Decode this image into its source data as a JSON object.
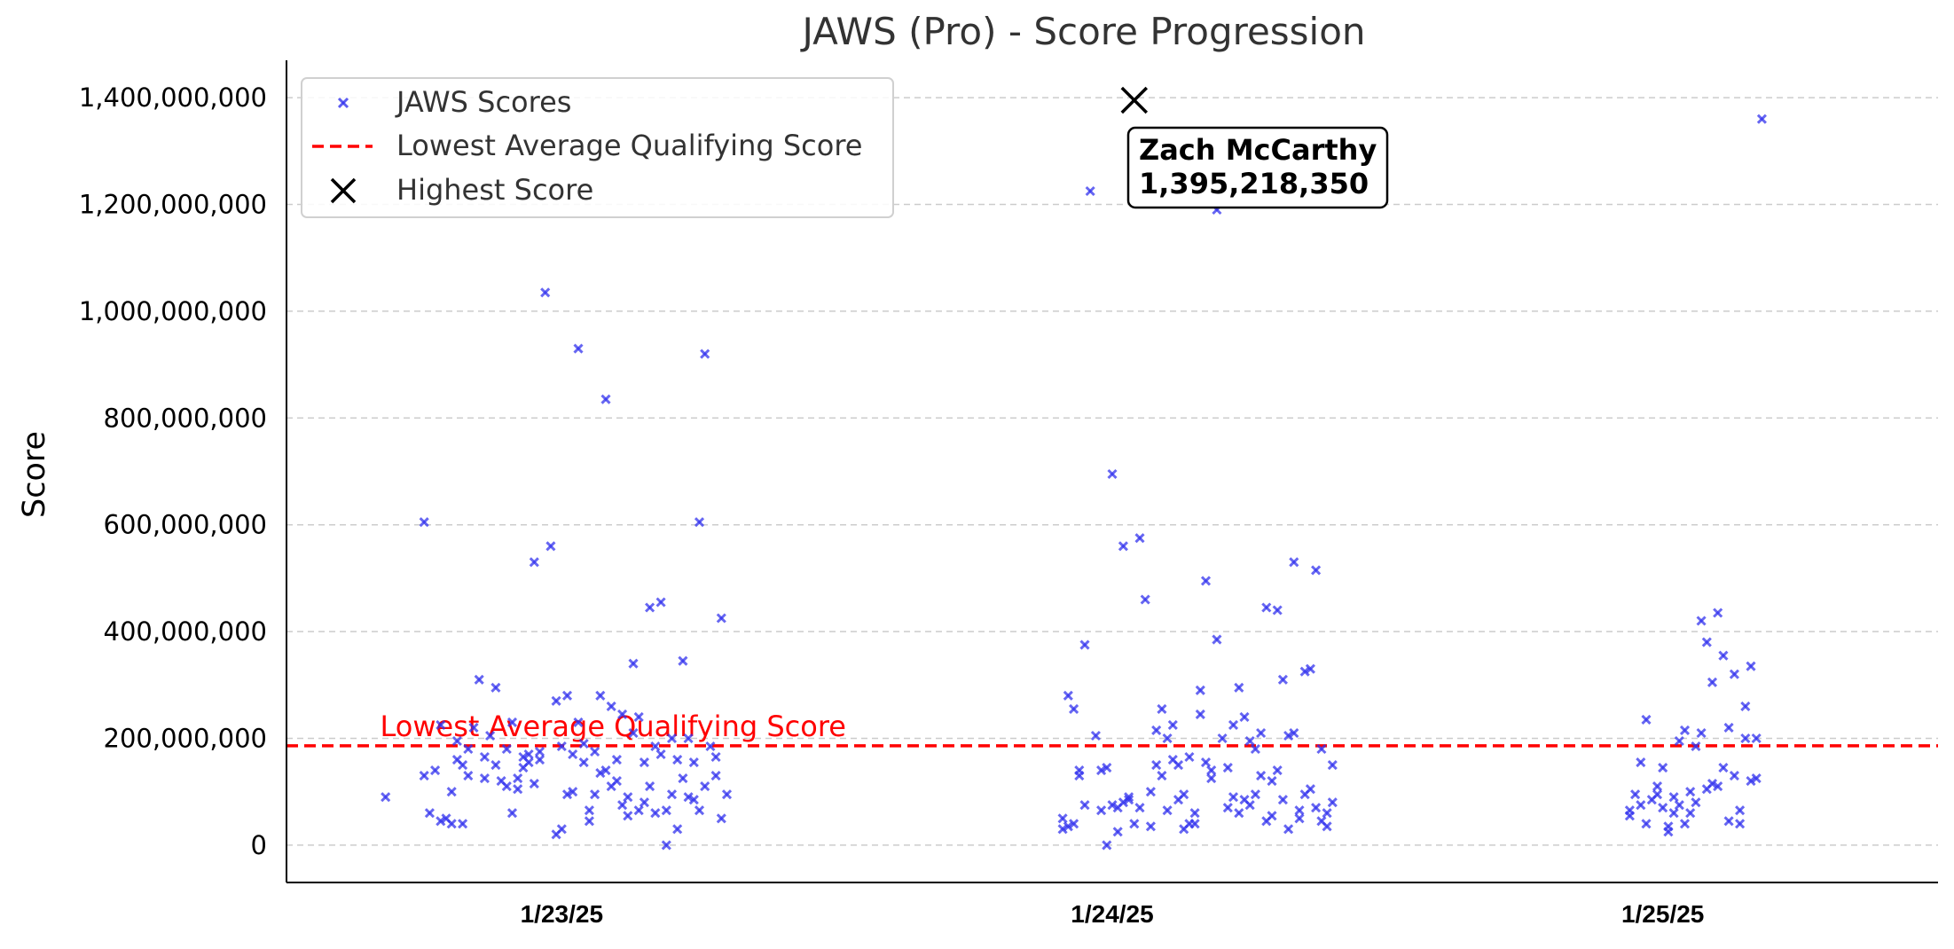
{
  "chart_data": {
    "type": "scatter",
    "title": "JAWS (Pro) - Score Progression",
    "xlabel": "",
    "ylabel": "Score",
    "ylim": [
      -70000000,
      1470000000
    ],
    "yticks": [
      0,
      200000000,
      400000000,
      600000000,
      800000000,
      1000000000,
      1200000000,
      1400000000
    ],
    "ytick_labels": [
      "0",
      "200,000,000",
      "400,000,000",
      "600,000,000",
      "800,000,000",
      "1,000,000,000",
      "1,200,000,000",
      "1,400,000,000"
    ],
    "xlim": [
      0,
      3
    ],
    "xticks": [
      0.5,
      1.5,
      2.5
    ],
    "xtick_labels": [
      "1/23/25",
      "1/24/25",
      "1/25/25"
    ],
    "grid": "horizontal dashed",
    "legend": {
      "position": "top-left",
      "entries": [
        "JAWS Scores",
        "Lowest Average Qualifying Score",
        "Highest Score"
      ]
    },
    "colors": {
      "scores": "#3333ee",
      "threshold": "#ff0000",
      "highlight": "#000000",
      "grid": "#cccccc"
    },
    "threshold": {
      "name": "Lowest Average Qualifying Score",
      "value": 186000000,
      "label": "Lowest Average Qualifying Score"
    },
    "highest": {
      "name": "Highest Score",
      "x": 1.54,
      "value": 1395218350,
      "player": "Zach McCarthy",
      "label": "1,395,218,350"
    },
    "series": [
      {
        "name": "JAWS Scores",
        "points": [
          [
            0.18,
            90000000
          ],
          [
            0.25,
            605000000
          ],
          [
            0.25,
            130000000
          ],
          [
            0.26,
            60000000
          ],
          [
            0.27,
            140000000
          ],
          [
            0.28,
            45000000
          ],
          [
            0.28,
            225000000
          ],
          [
            0.29,
            50000000
          ],
          [
            0.3,
            40000000
          ],
          [
            0.3,
            100000000
          ],
          [
            0.31,
            160000000
          ],
          [
            0.31,
            195000000
          ],
          [
            0.32,
            150000000
          ],
          [
            0.32,
            40000000
          ],
          [
            0.33,
            130000000
          ],
          [
            0.33,
            180000000
          ],
          [
            0.34,
            220000000
          ],
          [
            0.35,
            310000000
          ],
          [
            0.36,
            165000000
          ],
          [
            0.36,
            125000000
          ],
          [
            0.37,
            205000000
          ],
          [
            0.38,
            295000000
          ],
          [
            0.38,
            150000000
          ],
          [
            0.39,
            120000000
          ],
          [
            0.4,
            110000000
          ],
          [
            0.4,
            180000000
          ],
          [
            0.41,
            60000000
          ],
          [
            0.41,
            230000000
          ],
          [
            0.42,
            105000000
          ],
          [
            0.42,
            125000000
          ],
          [
            0.43,
            145000000
          ],
          [
            0.43,
            165000000
          ],
          [
            0.44,
            155000000
          ],
          [
            0.44,
            170000000
          ],
          [
            0.45,
            530000000
          ],
          [
            0.45,
            115000000
          ],
          [
            0.46,
            160000000
          ],
          [
            0.46,
            175000000
          ],
          [
            0.47,
            1035000000
          ],
          [
            0.48,
            560000000
          ],
          [
            0.49,
            20000000
          ],
          [
            0.49,
            270000000
          ],
          [
            0.5,
            30000000
          ],
          [
            0.5,
            185000000
          ],
          [
            0.51,
            280000000
          ],
          [
            0.51,
            95000000
          ],
          [
            0.52,
            100000000
          ],
          [
            0.52,
            170000000
          ],
          [
            0.53,
            230000000
          ],
          [
            0.53,
            930000000
          ],
          [
            0.54,
            155000000
          ],
          [
            0.54,
            190000000
          ],
          [
            0.55,
            65000000
          ],
          [
            0.55,
            45000000
          ],
          [
            0.56,
            95000000
          ],
          [
            0.56,
            175000000
          ],
          [
            0.57,
            280000000
          ],
          [
            0.57,
            135000000
          ],
          [
            0.58,
            835000000
          ],
          [
            0.58,
            140000000
          ],
          [
            0.59,
            110000000
          ],
          [
            0.59,
            260000000
          ],
          [
            0.6,
            160000000
          ],
          [
            0.6,
            120000000
          ],
          [
            0.61,
            245000000
          ],
          [
            0.61,
            75000000
          ],
          [
            0.62,
            90000000
          ],
          [
            0.62,
            55000000
          ],
          [
            0.63,
            340000000
          ],
          [
            0.63,
            210000000
          ],
          [
            0.64,
            240000000
          ],
          [
            0.64,
            65000000
          ],
          [
            0.65,
            80000000
          ],
          [
            0.65,
            155000000
          ],
          [
            0.66,
            110000000
          ],
          [
            0.66,
            445000000
          ],
          [
            0.67,
            60000000
          ],
          [
            0.67,
            185000000
          ],
          [
            0.68,
            455000000
          ],
          [
            0.68,
            170000000
          ],
          [
            0.69,
            65000000
          ],
          [
            0.69,
            0
          ],
          [
            0.7,
            200000000
          ],
          [
            0.7,
            95000000
          ],
          [
            0.71,
            160000000
          ],
          [
            0.71,
            30000000
          ],
          [
            0.72,
            125000000
          ],
          [
            0.72,
            345000000
          ],
          [
            0.73,
            90000000
          ],
          [
            0.73,
            200000000
          ],
          [
            0.74,
            85000000
          ],
          [
            0.74,
            155000000
          ],
          [
            0.75,
            605000000
          ],
          [
            0.75,
            65000000
          ],
          [
            0.76,
            920000000
          ],
          [
            0.76,
            110000000
          ],
          [
            0.77,
            185000000
          ],
          [
            0.78,
            130000000
          ],
          [
            0.78,
            165000000
          ],
          [
            0.79,
            425000000
          ],
          [
            0.79,
            50000000
          ],
          [
            0.8,
            95000000
          ],
          [
            1.41,
            50000000
          ],
          [
            1.41,
            30000000
          ],
          [
            1.42,
            35000000
          ],
          [
            1.42,
            280000000
          ],
          [
            1.43,
            255000000
          ],
          [
            1.43,
            40000000
          ],
          [
            1.44,
            130000000
          ],
          [
            1.44,
            140000000
          ],
          [
            1.45,
            375000000
          ],
          [
            1.45,
            75000000
          ],
          [
            1.46,
            1225000000
          ],
          [
            1.47,
            205000000
          ],
          [
            1.48,
            65000000
          ],
          [
            1.48,
            140000000
          ],
          [
            1.49,
            0
          ],
          [
            1.49,
            145000000
          ],
          [
            1.5,
            75000000
          ],
          [
            1.5,
            695000000
          ],
          [
            1.51,
            25000000
          ],
          [
            1.51,
            70000000
          ],
          [
            1.52,
            80000000
          ],
          [
            1.52,
            560000000
          ],
          [
            1.53,
            90000000
          ],
          [
            1.53,
            85000000
          ],
          [
            1.54,
            40000000
          ],
          [
            1.55,
            575000000
          ],
          [
            1.55,
            70000000
          ],
          [
            1.56,
            460000000
          ],
          [
            1.57,
            35000000
          ],
          [
            1.57,
            100000000
          ],
          [
            1.58,
            215000000
          ],
          [
            1.58,
            150000000
          ],
          [
            1.59,
            255000000
          ],
          [
            1.59,
            130000000
          ],
          [
            1.6,
            65000000
          ],
          [
            1.6,
            200000000
          ],
          [
            1.61,
            225000000
          ],
          [
            1.61,
            160000000
          ],
          [
            1.62,
            85000000
          ],
          [
            1.62,
            150000000
          ],
          [
            1.63,
            95000000
          ],
          [
            1.63,
            30000000
          ],
          [
            1.64,
            40000000
          ],
          [
            1.64,
            165000000
          ],
          [
            1.65,
            60000000
          ],
          [
            1.65,
            40000000
          ],
          [
            1.66,
            245000000
          ],
          [
            1.66,
            290000000
          ],
          [
            1.67,
            155000000
          ],
          [
            1.67,
            495000000
          ],
          [
            1.68,
            140000000
          ],
          [
            1.68,
            125000000
          ],
          [
            1.69,
            385000000
          ],
          [
            1.69,
            1190000000
          ],
          [
            1.7,
            200000000
          ],
          [
            1.71,
            70000000
          ],
          [
            1.71,
            145000000
          ],
          [
            1.72,
            90000000
          ],
          [
            1.72,
            225000000
          ],
          [
            1.73,
            295000000
          ],
          [
            1.73,
            60000000
          ],
          [
            1.74,
            85000000
          ],
          [
            1.74,
            240000000
          ],
          [
            1.75,
            75000000
          ],
          [
            1.75,
            195000000
          ],
          [
            1.76,
            180000000
          ],
          [
            1.76,
            95000000
          ],
          [
            1.77,
            130000000
          ],
          [
            1.77,
            210000000
          ],
          [
            1.78,
            45000000
          ],
          [
            1.78,
            445000000
          ],
          [
            1.79,
            55000000
          ],
          [
            1.79,
            120000000
          ],
          [
            1.8,
            440000000
          ],
          [
            1.8,
            140000000
          ],
          [
            1.81,
            85000000
          ],
          [
            1.81,
            310000000
          ],
          [
            1.82,
            205000000
          ],
          [
            1.82,
            30000000
          ],
          [
            1.83,
            210000000
          ],
          [
            1.83,
            530000000
          ],
          [
            1.84,
            65000000
          ],
          [
            1.84,
            50000000
          ],
          [
            1.85,
            95000000
          ],
          [
            1.85,
            325000000
          ],
          [
            1.86,
            105000000
          ],
          [
            1.86,
            330000000
          ],
          [
            1.87,
            70000000
          ],
          [
            1.87,
            515000000
          ],
          [
            1.88,
            180000000
          ],
          [
            1.88,
            45000000
          ],
          [
            1.89,
            35000000
          ],
          [
            1.89,
            60000000
          ],
          [
            1.9,
            80000000
          ],
          [
            1.9,
            150000000
          ],
          [
            2.44,
            55000000
          ],
          [
            2.44,
            65000000
          ],
          [
            2.45,
            95000000
          ],
          [
            2.46,
            75000000
          ],
          [
            2.46,
            155000000
          ],
          [
            2.47,
            235000000
          ],
          [
            2.47,
            40000000
          ],
          [
            2.48,
            85000000
          ],
          [
            2.49,
            110000000
          ],
          [
            2.49,
            95000000
          ],
          [
            2.5,
            70000000
          ],
          [
            2.5,
            145000000
          ],
          [
            2.51,
            35000000
          ],
          [
            2.51,
            25000000
          ],
          [
            2.52,
            90000000
          ],
          [
            2.52,
            60000000
          ],
          [
            2.53,
            75000000
          ],
          [
            2.53,
            195000000
          ],
          [
            2.54,
            215000000
          ],
          [
            2.54,
            40000000
          ],
          [
            2.55,
            100000000
          ],
          [
            2.55,
            60000000
          ],
          [
            2.56,
            80000000
          ],
          [
            2.56,
            185000000
          ],
          [
            2.57,
            210000000
          ],
          [
            2.57,
            420000000
          ],
          [
            2.58,
            105000000
          ],
          [
            2.58,
            380000000
          ],
          [
            2.59,
            305000000
          ],
          [
            2.59,
            115000000
          ],
          [
            2.6,
            435000000
          ],
          [
            2.6,
            110000000
          ],
          [
            2.61,
            355000000
          ],
          [
            2.61,
            145000000
          ],
          [
            2.62,
            220000000
          ],
          [
            2.62,
            45000000
          ],
          [
            2.63,
            130000000
          ],
          [
            2.63,
            320000000
          ],
          [
            2.64,
            40000000
          ],
          [
            2.64,
            65000000
          ],
          [
            2.65,
            260000000
          ],
          [
            2.65,
            200000000
          ],
          [
            2.66,
            335000000
          ],
          [
            2.66,
            120000000
          ],
          [
            2.67,
            125000000
          ],
          [
            2.67,
            200000000
          ],
          [
            2.68,
            1360000000
          ]
        ]
      }
    ]
  }
}
